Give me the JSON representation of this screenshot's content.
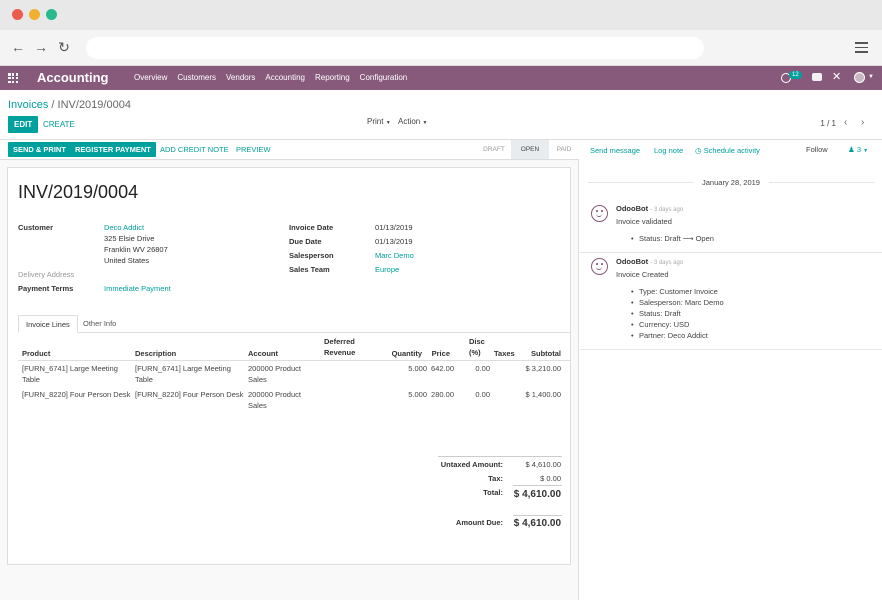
{
  "navbar": {
    "app_name": "Accounting",
    "menu": [
      "Overview",
      "Customers",
      "Vendors",
      "Accounting",
      "Reporting",
      "Configuration"
    ],
    "activity_count": "12",
    "brand_color": "#875a7b",
    "accent_color": "#00a09d"
  },
  "breadcrumb": {
    "parent": "Invoices",
    "separator": "/",
    "current": "INV/2019/0004"
  },
  "control_panel": {
    "edit_label": "EDIT",
    "create_label": "CREATE",
    "print_label": "Print",
    "action_label": "Action",
    "pager": "1 / 1"
  },
  "statusbar": {
    "buttons": [
      "SEND & PRINT",
      "REGISTER PAYMENT",
      "ADD CREDIT NOTE",
      "PREVIEW"
    ],
    "stages": [
      "DRAFT",
      "OPEN",
      "PAID"
    ],
    "active_stage": "OPEN"
  },
  "invoice": {
    "number": "INV/2019/0004",
    "customer_label": "Customer",
    "customer_name": "Deco Addict",
    "customer_address": [
      "325 Elsie Drive",
      "Franklin WV 26807",
      "United States"
    ],
    "delivery_address_label": "Delivery Address",
    "payment_terms_label": "Payment Terms",
    "payment_terms": "Immediate Payment",
    "invoice_date_label": "Invoice Date",
    "invoice_date": "01/13/2019",
    "due_date_label": "Due Date",
    "due_date": "01/13/2019",
    "salesperson_label": "Salesperson",
    "salesperson": "Marc Demo",
    "sales_team_label": "Sales Team",
    "sales_team": "Europe"
  },
  "tabs": [
    "Invoice Lines",
    "Other Info"
  ],
  "lines": {
    "headers": {
      "product": "Product",
      "description": "Description",
      "account": "Account",
      "deferred": "Deferred Revenue",
      "quantity": "Quantity",
      "price": "Price",
      "disc": "Disc (%)",
      "taxes": "Taxes",
      "subtotal": "Subtotal"
    },
    "rows": [
      {
        "product": "[FURN_6741] Large Meeting Table",
        "description": "[FURN_6741] Large Meeting Table",
        "account": "200000 Product Sales",
        "quantity": "5.000",
        "price": "642.00",
        "disc": "0.00",
        "subtotal": "$ 3,210.00"
      },
      {
        "product": "[FURN_8220] Four Person Desk",
        "description": "[FURN_8220] Four Person Desk",
        "account": "200000 Product Sales",
        "quantity": "5.000",
        "price": "280.00",
        "disc": "0.00",
        "subtotal": "$ 1,400.00"
      }
    ]
  },
  "totals": {
    "untaxed_label": "Untaxed Amount:",
    "untaxed": "$ 4,610.00",
    "tax_label": "Tax:",
    "tax": "$ 0.00",
    "total_label": "Total:",
    "total": "$ 4,610.00",
    "due_label": "Amount Due:",
    "due": "$ 4,610.00"
  },
  "chatter": {
    "send_message": "Send message",
    "log_note": "Log note",
    "schedule_activity": "Schedule activity",
    "follow": "Follow",
    "followers": "3",
    "date": "January 28, 2019",
    "messages": [
      {
        "author": "OdooBot",
        "ago": "- 3 days ago",
        "body": "Invoice validated",
        "items": [
          "Status: Draft ⟶ Open"
        ]
      },
      {
        "author": "OdooBot",
        "ago": "- 3 days ago",
        "body": "Invoice Created",
        "items": [
          "Type: Customer Invoice",
          "Salesperson: Marc Demo",
          "Status: Draft",
          "Currency: USD",
          "Partner: Deco Addict"
        ]
      }
    ]
  }
}
